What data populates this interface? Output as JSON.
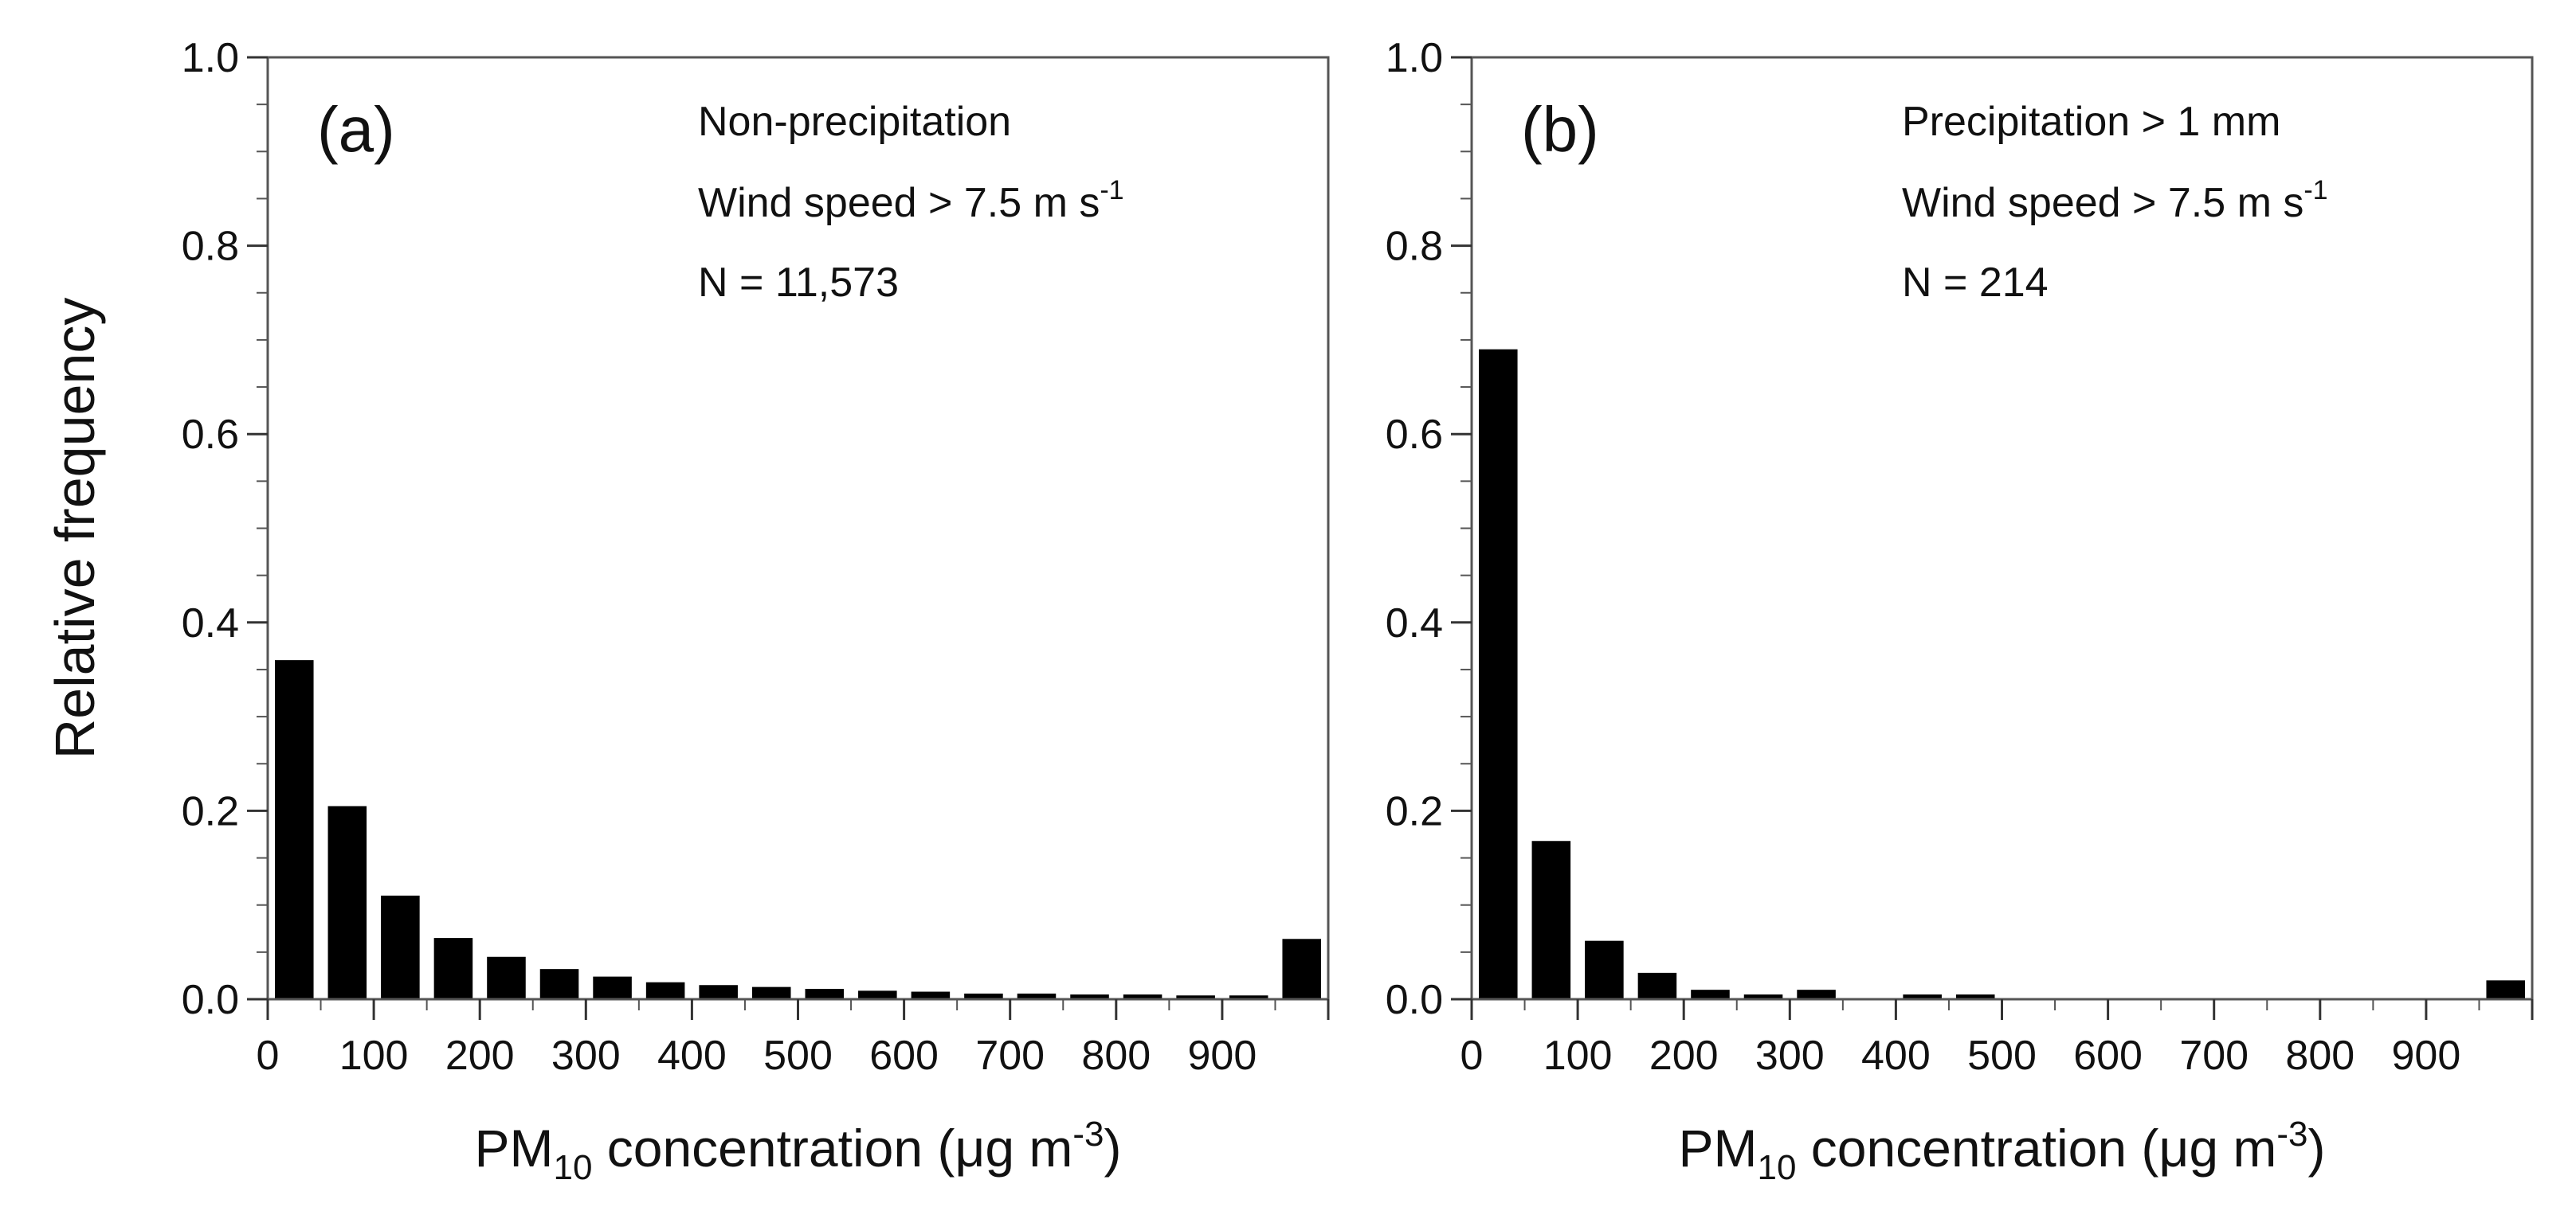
{
  "chart_data": [
    {
      "type": "bar",
      "panel": "(a)",
      "annotations": [
        "Non-precipitation",
        "Wind speed > 7.5 m s",
        "-1",
        "N = 11,573"
      ],
      "xlabel": {
        "pre": "PM",
        "sub": "10",
        "mid": " concentration  (μg m",
        "sup": "-3",
        "post": ")"
      },
      "ylabel": "Relative frequency",
      "x_ticks": [
        0,
        100,
        200,
        300,
        400,
        500,
        600,
        700,
        800,
        900
      ],
      "y_ticks": [
        "0.0",
        "0.2",
        "0.4",
        "0.6",
        "0.8",
        "1.0"
      ],
      "xlim": [
        0,
        1000
      ],
      "ylim": [
        0,
        1.0
      ],
      "bin_width": 50,
      "bin_starts": [
        0,
        50,
        100,
        150,
        200,
        250,
        300,
        350,
        400,
        450,
        500,
        550,
        600,
        650,
        700,
        750,
        800,
        850,
        900,
        950
      ],
      "values": [
        0.36,
        0.205,
        0.11,
        0.065,
        0.045,
        0.032,
        0.024,
        0.018,
        0.015,
        0.013,
        0.011,
        0.009,
        0.008,
        0.006,
        0.006,
        0.005,
        0.005,
        0.004,
        0.004,
        0.064
      ]
    },
    {
      "type": "bar",
      "panel": "(b)",
      "annotations": [
        "Precipitation > 1 mm",
        "Wind speed > 7.5 m s",
        "-1",
        "N = 214"
      ],
      "xlabel": {
        "pre": "PM",
        "sub": "10",
        "mid": " concentration  (μg m",
        "sup": "-3",
        "post": ")"
      },
      "ylabel": "",
      "x_ticks": [
        0,
        100,
        200,
        300,
        400,
        500,
        600,
        700,
        800,
        900
      ],
      "y_ticks": [
        "0.0",
        "0.2",
        "0.4",
        "0.6",
        "0.8",
        "1.0"
      ],
      "xlim": [
        0,
        1000
      ],
      "ylim": [
        0,
        1.0
      ],
      "bin_width": 50,
      "bin_starts": [
        0,
        50,
        100,
        150,
        200,
        250,
        300,
        350,
        400,
        450,
        500,
        550,
        600,
        650,
        700,
        750,
        800,
        850,
        900,
        950
      ],
      "values": [
        0.69,
        0.168,
        0.062,
        0.028,
        0.01,
        0.005,
        0.01,
        0.0,
        0.005,
        0.005,
        0.0,
        0.0,
        0.0,
        0.0,
        0.0,
        0.0,
        0.0,
        0.0,
        0.0,
        0.02
      ]
    }
  ]
}
